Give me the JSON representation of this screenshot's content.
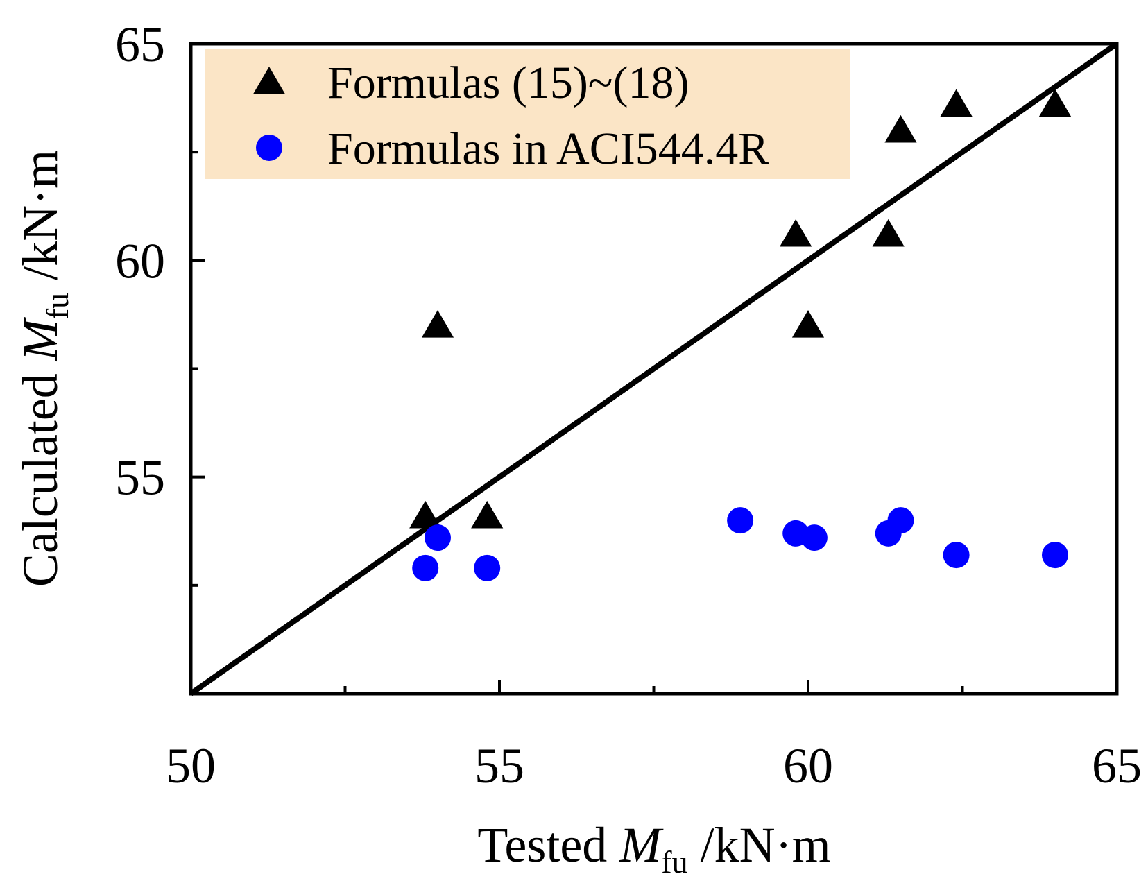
{
  "chart_data": {
    "type": "scatter",
    "xlabel": {
      "prefix": "Tested ",
      "symbol": "M",
      "subscript": "fu",
      "unit": " /kN·m"
    },
    "ylabel": {
      "prefix": "Calculated ",
      "symbol": "M",
      "subscript": "fu",
      "unit": " /kN·m"
    },
    "xlim": [
      50,
      65
    ],
    "ylim": [
      50,
      65
    ],
    "x_ticks": [
      50,
      55,
      60,
      65
    ],
    "y_ticks": [
      55,
      60,
      65
    ],
    "x_tick_labels": [
      "50",
      "55",
      "60",
      "65"
    ],
    "y_tick_labels": [
      "55",
      "60",
      "65"
    ],
    "x_minor_ticks": [
      52.5,
      57.5,
      62.5
    ],
    "y_minor_ticks": [
      52.5,
      57.5,
      62.5
    ],
    "grid": false,
    "legend_position": "top-left",
    "legend_background": "#fbe5c6",
    "reference_line": {
      "from": [
        50,
        50
      ],
      "to": [
        65,
        65
      ],
      "color": "#000000"
    },
    "series": [
      {
        "name": "Formulas (15)~(18)",
        "marker": "triangle",
        "color": "#000000",
        "points": [
          [
            53.8,
            54.1
          ],
          [
            54.0,
            58.5
          ],
          [
            54.8,
            54.1
          ],
          [
            59.8,
            60.6
          ],
          [
            60.0,
            58.5
          ],
          [
            61.3,
            60.6
          ],
          [
            61.5,
            63.0
          ],
          [
            62.4,
            63.6
          ],
          [
            64.0,
            63.6
          ]
        ]
      },
      {
        "name": "Formulas in ACI544.4R",
        "marker": "circle",
        "color": "#0000ff",
        "points": [
          [
            53.8,
            52.9
          ],
          [
            54.0,
            53.6
          ],
          [
            54.8,
            52.9
          ],
          [
            58.9,
            54.0
          ],
          [
            59.8,
            53.7
          ],
          [
            60.1,
            53.6
          ],
          [
            61.3,
            53.7
          ],
          [
            61.5,
            54.0
          ],
          [
            62.4,
            53.2
          ],
          [
            64.0,
            53.2
          ]
        ]
      }
    ]
  }
}
